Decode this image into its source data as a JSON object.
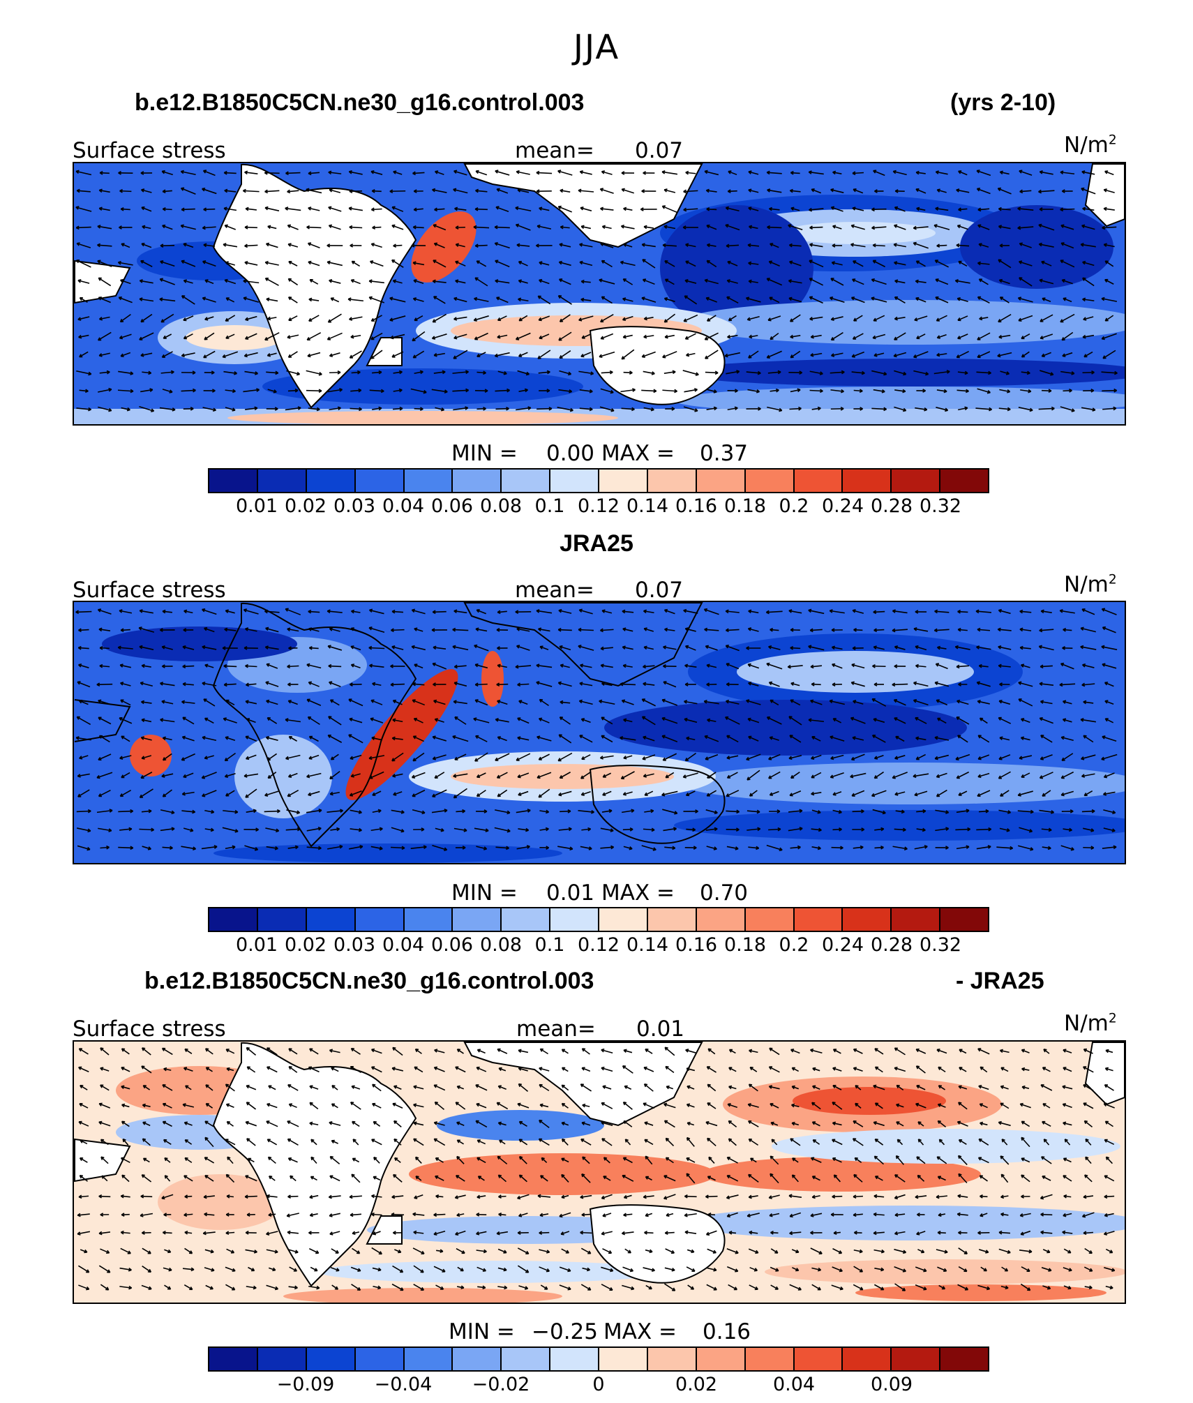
{
  "season": "JJA",
  "panels": [
    {
      "title_left": "b.e12.B1850C5CN.ne30_g16.control.003",
      "title_right": "(yrs 2-10)",
      "var_label": "Surface stress",
      "mean_label": "mean=",
      "mean_value": "0.07",
      "units_base": "N/m",
      "units_exp": "2",
      "min_label": "MIN =",
      "min_value": "0.00",
      "max_label": "MAX =",
      "max_value": "0.37",
      "colorbar": {
        "colors": [
          "#08148c",
          "#0a2cb4",
          "#0c44d2",
          "#2c64e6",
          "#4a84ee",
          "#7aa6f4",
          "#a8c6f8",
          "#d2e4fc",
          "#fde8d6",
          "#fcc6ac",
          "#fba484",
          "#f8805c",
          "#ee5434",
          "#d8321a",
          "#b41a10",
          "#820808"
        ],
        "ticks": [
          "0.01",
          "0.02",
          "0.03",
          "0.04",
          "0.06",
          "0.08",
          "0.1",
          "0.12",
          "0.14",
          "0.16",
          "0.18",
          "0.2",
          "0.24",
          "0.28",
          "0.32"
        ]
      }
    },
    {
      "title_center": "JRA25",
      "var_label": "Surface stress",
      "mean_label": "mean=",
      "mean_value": "0.07",
      "units_base": "N/m",
      "units_exp": "2",
      "min_label": "MIN =",
      "min_value": "0.01",
      "max_label": "MAX =",
      "max_value": "0.70",
      "colorbar": {
        "colors": [
          "#08148c",
          "#0a2cb4",
          "#0c44d2",
          "#2c64e6",
          "#4a84ee",
          "#7aa6f4",
          "#a8c6f8",
          "#d2e4fc",
          "#fde8d6",
          "#fcc6ac",
          "#fba484",
          "#f8805c",
          "#ee5434",
          "#d8321a",
          "#b41a10",
          "#820808"
        ],
        "ticks": [
          "0.01",
          "0.02",
          "0.03",
          "0.04",
          "0.06",
          "0.08",
          "0.1",
          "0.12",
          "0.14",
          "0.16",
          "0.18",
          "0.2",
          "0.24",
          "0.28",
          "0.32"
        ]
      }
    },
    {
      "title_left": "b.e12.B1850C5CN.ne30_g16.control.003",
      "title_right": "- JRA25",
      "var_label": "Surface stress",
      "mean_label": "mean=",
      "mean_value": "0.01",
      "units_base": "N/m",
      "units_exp": "2",
      "min_label": "MIN =",
      "min_value": "−0.25",
      "max_label": "MAX =",
      "max_value": "0.16",
      "colorbar": {
        "colors": [
          "#08148c",
          "#0a2cb4",
          "#0c44d2",
          "#2c64e6",
          "#4a84ee",
          "#7aa6f4",
          "#a8c6f8",
          "#d2e4fc",
          "#fde8d6",
          "#fcc6ac",
          "#fba484",
          "#f8805c",
          "#ee5434",
          "#d8321a",
          "#b41a10",
          "#820808"
        ],
        "ticks": [
          "−0.09",
          "−0.04",
          "−0.02",
          "0",
          "0.02",
          "0.04",
          "0.09"
        ],
        "tick_boundaries": [
          2,
          4,
          6,
          8,
          10,
          12,
          14
        ]
      }
    }
  ]
}
